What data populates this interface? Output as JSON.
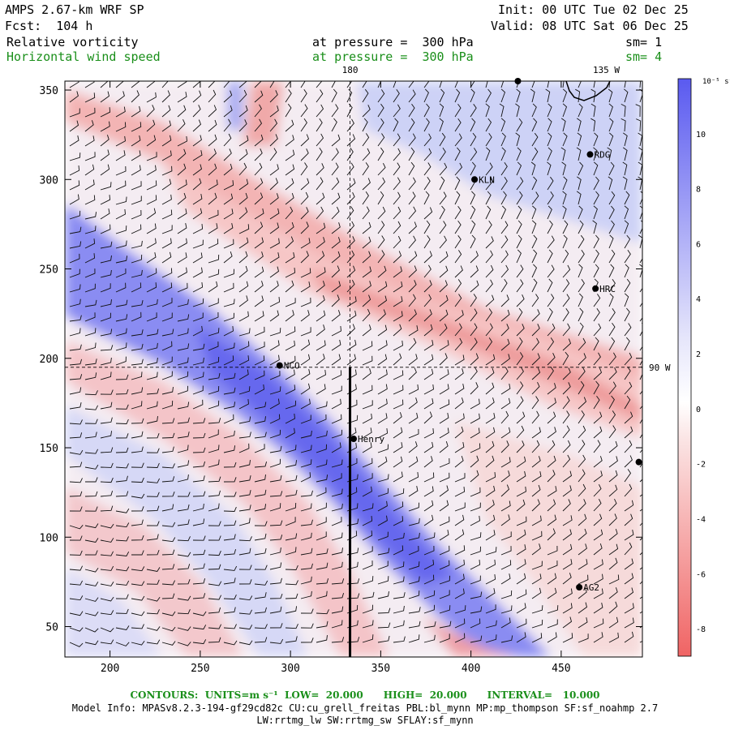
{
  "header": {
    "model_title": "AMPS 2.67-km WRF SP",
    "forecast": "Fcst:  104 h",
    "init": "Init: 00 UTC Tue 02 Dec 25",
    "valid": "Valid: 08 UTC Sat 06 Dec 25"
  },
  "fields": [
    {
      "name": "Relative vorticity",
      "level": "at pressure =  300 hPa",
      "smooth": "sm= 1",
      "color": "#000000"
    },
    {
      "name": "Horizontal wind speed",
      "level": "at pressure =  300 hPa",
      "smooth": "sm= 4",
      "color": "#1a8f1a"
    }
  ],
  "map": {
    "x_ticks": [
      200,
      250,
      300,
      350,
      400,
      450
    ],
    "y_ticks": [
      50,
      100,
      150,
      200,
      250,
      300,
      350
    ],
    "x_range": [
      175,
      495
    ],
    "y_range": [
      33,
      355
    ],
    "longitude_labels": [
      {
        "text": "180",
        "x": 333,
        "edge": "top"
      },
      {
        "text": "135 W",
        "x": 475,
        "edge": "top"
      },
      {
        "text": "90 W",
        "y": 195,
        "edge": "right"
      }
    ],
    "meridian_x": 333,
    "parallel_y": 195,
    "cross_section": {
      "x": 333,
      "y_from": 33,
      "y_to": 195
    },
    "stations": [
      {
        "label": "KLN",
        "x": 402,
        "y": 300
      },
      {
        "label": "RDG",
        "x": 466,
        "y": 314
      },
      {
        "label": "HRC",
        "x": 469,
        "y": 239
      },
      {
        "label": "NCO",
        "x": 294,
        "y": 196
      },
      {
        "label": "Henry",
        "x": 335,
        "y": 155
      },
      {
        "label": "AG2",
        "x": 460,
        "y": 72
      },
      {
        "label": "",
        "x": 426,
        "y": 355
      },
      {
        "label": "",
        "x": 493,
        "y": 142
      }
    ]
  },
  "colorbar": {
    "unit": "10⁻⁵ s⁻¹",
    "labels": [
      "10",
      "8",
      "6",
      "4",
      "2",
      "0",
      "-2",
      "-4",
      "-6",
      "-8"
    ],
    "min": -9,
    "max": 12,
    "positive_color": "#5a5af0",
    "negative_color": "#f06464"
  },
  "contours": {
    "prefix": "CONTOURS:  UNITS=m s⁻¹  LOW=  20.000      HIGH=  20.000      INTERVAL=   10.000",
    "color": "#1a8f1a"
  },
  "model_info": {
    "line1": "Model Info: MPASv8.2.3-194-gf29cd82c CU:cu_grell_freitas PBL:bl_mynn MP:mp_thompson SF:sf_noahmp 2.7",
    "line2": "LW:rrtmg_lw SW:rrtmg_sw SFLAY:sf_mynn"
  }
}
